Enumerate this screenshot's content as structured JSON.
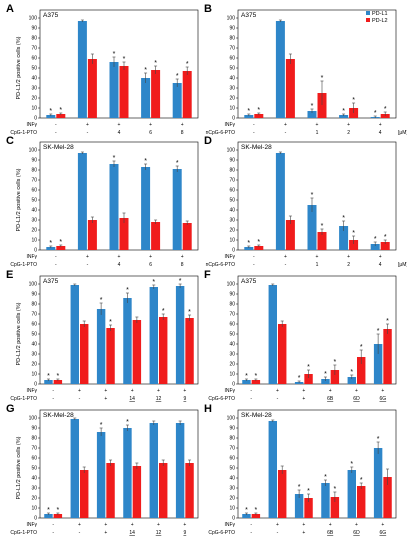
{
  "colors": {
    "pd_l1": "#2E86C9",
    "pd_l2": "#F01C1C",
    "axis": "#000000",
    "error": "#444444"
  },
  "legend": {
    "series": [
      "PD-L1",
      "PD-L2"
    ],
    "placement": "top-right (panel B)"
  },
  "unit_label": "[μM]",
  "chart_data": [
    {
      "type": "bar",
      "panel": "A",
      "title": "A375",
      "ylabel": "PD-L1/2 positive cells (%)",
      "ylim": [
        0,
        100
      ],
      "yticks": [
        "0",
        "10",
        "20",
        "30",
        "40",
        "50",
        "60",
        "70",
        "80",
        "90",
        "100"
      ],
      "rows": [
        {
          "label": "INFγ",
          "values": [
            "-",
            "+",
            "+",
            "+",
            "+"
          ]
        },
        {
          "label": "CpG-1-PTO",
          "values": [
            "-",
            "-",
            "4",
            "6",
            "8"
          ]
        }
      ],
      "series": [
        {
          "name": "PD-L1",
          "values": [
            3,
            97,
            56,
            40,
            35
          ],
          "errors": [
            1,
            1,
            5,
            5,
            4
          ],
          "stars": [
            true,
            false,
            true,
            true,
            true
          ]
        },
        {
          "name": "PD-L2",
          "values": [
            4,
            59,
            52,
            48,
            47
          ],
          "errors": [
            1,
            5,
            4,
            4,
            4
          ],
          "stars": [
            true,
            false,
            true,
            true,
            true
          ]
        }
      ]
    },
    {
      "type": "bar",
      "panel": "B",
      "title": "A375",
      "ylabel": "",
      "ylim": [
        0,
        100
      ],
      "yticks": [
        "0",
        "10",
        "20",
        "30",
        "40",
        "50",
        "60",
        "70",
        "80",
        "90",
        "100"
      ],
      "rows": [
        {
          "label": "INFγ",
          "values": [
            "-",
            "+",
            "+",
            "+",
            "+"
          ]
        },
        {
          "label": "nCpG-6-PTO",
          "values": [
            "-",
            "-",
            "1",
            "2",
            "4"
          ]
        }
      ],
      "units": true,
      "series": [
        {
          "name": "PD-L1",
          "values": [
            3,
            97,
            7,
            3,
            1
          ],
          "errors": [
            1,
            1,
            2,
            1,
            1
          ],
          "stars": [
            true,
            false,
            true,
            true,
            true
          ]
        },
        {
          "name": "PD-L2",
          "values": [
            4,
            59,
            25,
            10,
            4
          ],
          "errors": [
            1,
            5,
            12,
            5,
            2
          ],
          "stars": [
            true,
            false,
            true,
            true,
            true
          ]
        }
      ]
    },
    {
      "type": "bar",
      "panel": "C",
      "title": "SK-Mel-28",
      "ylabel": "PD-L1/2 positive cells (%)",
      "ylim": [
        0,
        100
      ],
      "yticks": [
        "0",
        "10",
        "20",
        "30",
        "40",
        "50",
        "60",
        "70",
        "80",
        "90",
        "100"
      ],
      "rows": [
        {
          "label": "INFγ",
          "values": [
            "-",
            "+",
            "+",
            "+",
            "+"
          ]
        },
        {
          "label": "CpG-1-PTO",
          "values": [
            "-",
            "-",
            "4",
            "6",
            "8"
          ]
        }
      ],
      "series": [
        {
          "name": "PD-L1",
          "values": [
            3,
            97,
            86,
            83,
            81
          ],
          "errors": [
            1,
            1,
            3,
            3,
            3
          ],
          "stars": [
            true,
            false,
            true,
            true,
            true
          ]
        },
        {
          "name": "PD-L2",
          "values": [
            4,
            30,
            32,
            28,
            27
          ],
          "errors": [
            1,
            3,
            5,
            2,
            2
          ],
          "stars": [
            true,
            false,
            false,
            false,
            false
          ]
        }
      ]
    },
    {
      "type": "bar",
      "panel": "D",
      "title": "SK-Mel-28",
      "ylabel": "",
      "ylim": [
        0,
        100
      ],
      "yticks": [
        "0",
        "10",
        "20",
        "30",
        "40",
        "50",
        "60",
        "70",
        "80",
        "90",
        "100"
      ],
      "rows": [
        {
          "label": "INFγ",
          "values": [
            "-",
            "+",
            "+",
            "+",
            "+"
          ]
        },
        {
          "label": "nCpG-6-PTO",
          "values": [
            "-",
            "-",
            "1",
            "2",
            "4"
          ]
        }
      ],
      "units": true,
      "series": [
        {
          "name": "PD-L1",
          "values": [
            3,
            97,
            45,
            24,
            6
          ],
          "errors": [
            1,
            1,
            7,
            5,
            2
          ],
          "stars": [
            true,
            false,
            true,
            true,
            true
          ]
        },
        {
          "name": "PD-L2",
          "values": [
            4,
            30,
            18,
            10,
            8
          ],
          "errors": [
            1,
            4,
            3,
            4,
            2
          ],
          "stars": [
            true,
            false,
            true,
            true,
            true
          ]
        }
      ]
    },
    {
      "type": "bar",
      "panel": "E",
      "title": "A375",
      "ylabel": "PD-L1/2 positive cells (%)",
      "ylim": [
        0,
        100
      ],
      "yticks": [
        "0",
        "10",
        "20",
        "30",
        "40",
        "50",
        "60",
        "70",
        "80",
        "90",
        "100"
      ],
      "rows": [
        {
          "label": "INFγ",
          "values": [
            "-",
            "+",
            "+",
            "+",
            "+",
            "+"
          ]
        },
        {
          "label": "CpG-1-PTO",
          "values": [
            "-",
            "-",
            "+",
            "14",
            "12",
            "9"
          ],
          "underline": [
            false,
            false,
            false,
            true,
            true,
            true
          ]
        }
      ],
      "series": [
        {
          "name": "PD-L1",
          "values": [
            4,
            99,
            75,
            86,
            97,
            98
          ],
          "errors": [
            1,
            1,
            6,
            5,
            2,
            2
          ],
          "stars": [
            true,
            false,
            true,
            true,
            true,
            true
          ]
        },
        {
          "name": "PD-L2",
          "values": [
            4,
            60,
            56,
            64,
            67,
            66
          ],
          "errors": [
            1,
            3,
            3,
            3,
            3,
            3
          ],
          "stars": [
            true,
            false,
            true,
            false,
            true,
            true
          ]
        }
      ]
    },
    {
      "type": "bar",
      "panel": "F",
      "title": "A375",
      "ylabel": "",
      "ylim": [
        0,
        100
      ],
      "yticks": [
        "0",
        "10",
        "20",
        "30",
        "40",
        "50",
        "60",
        "70",
        "80",
        "90",
        "100"
      ],
      "rows": [
        {
          "label": "INFγ",
          "values": [
            "-",
            "+",
            "+",
            "+",
            "+",
            "+"
          ]
        },
        {
          "label": "CpG-6-PTO",
          "values": [
            "-",
            "-",
            "+",
            "6B",
            "6D",
            "6G"
          ],
          "underline": [
            false,
            false,
            false,
            true,
            true,
            true
          ]
        }
      ],
      "series": [
        {
          "name": "PD-L1",
          "values": [
            4,
            99,
            2,
            5,
            7,
            40
          ],
          "errors": [
            1,
            1,
            1,
            2,
            2,
            10
          ],
          "stars": [
            true,
            false,
            true,
            true,
            true,
            true
          ]
        },
        {
          "name": "PD-L2",
          "values": [
            4,
            60,
            10,
            14,
            27,
            55
          ],
          "errors": [
            1,
            3,
            4,
            5,
            7,
            5
          ],
          "stars": [
            true,
            false,
            true,
            true,
            true,
            true
          ]
        }
      ]
    },
    {
      "type": "bar",
      "panel": "G",
      "title": "SK-Mel-28",
      "ylabel": "PD-L1/2 positive cells (%)",
      "ylim": [
        0,
        100
      ],
      "yticks": [
        "0",
        "10",
        "20",
        "30",
        "40",
        "50",
        "60",
        "70",
        "80",
        "90",
        "100"
      ],
      "rows": [
        {
          "label": "INFγ",
          "values": [
            "-",
            "+",
            "+",
            "+",
            "+",
            "+"
          ]
        },
        {
          "label": "CpG-1-PTO",
          "values": [
            "-",
            "-",
            "+",
            "14",
            "12",
            "9"
          ],
          "underline": [
            false,
            false,
            false,
            true,
            true,
            true
          ]
        }
      ],
      "series": [
        {
          "name": "PD-L1",
          "values": [
            4,
            99,
            86,
            90,
            95,
            95
          ],
          "errors": [
            1,
            1,
            4,
            3,
            2,
            2
          ],
          "stars": [
            true,
            false,
            true,
            true,
            false,
            false
          ]
        },
        {
          "name": "PD-L2",
          "values": [
            4,
            48,
            55,
            52,
            55,
            55
          ],
          "errors": [
            1,
            3,
            3,
            3,
            3,
            3
          ],
          "stars": [
            true,
            false,
            false,
            false,
            false,
            false
          ]
        }
      ]
    },
    {
      "type": "bar",
      "panel": "H",
      "title": "SK-Mel-28",
      "ylabel": "",
      "ylim": [
        0,
        100
      ],
      "yticks": [
        "0",
        "10",
        "20",
        "30",
        "40",
        "50",
        "60",
        "70",
        "80",
        "90",
        "100"
      ],
      "rows": [
        {
          "label": "INFγ",
          "values": [
            "-",
            "+",
            "+",
            "+",
            "+",
            "+"
          ]
        },
        {
          "label": "CpG-6-PTO",
          "values": [
            "-",
            "-",
            "+",
            "6B",
            "6D",
            "6G"
          ],
          "underline": [
            false,
            false,
            false,
            true,
            true,
            true
          ]
        }
      ],
      "series": [
        {
          "name": "PD-L1",
          "values": [
            4,
            97,
            24,
            35,
            48,
            70
          ],
          "errors": [
            1,
            1,
            4,
            3,
            3,
            6
          ],
          "stars": [
            true,
            false,
            true,
            true,
            true,
            true
          ]
        },
        {
          "name": "PD-L2",
          "values": [
            4,
            48,
            20,
            21,
            32,
            41
          ],
          "errors": [
            1,
            4,
            4,
            5,
            3,
            8
          ],
          "stars": [
            true,
            false,
            true,
            true,
            true,
            false
          ]
        }
      ]
    }
  ]
}
